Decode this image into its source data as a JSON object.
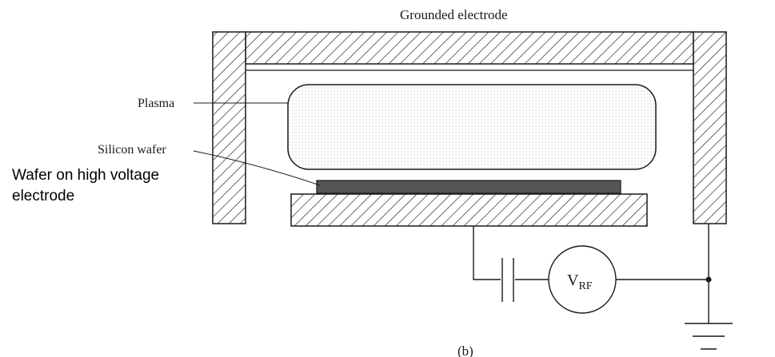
{
  "labels": {
    "grounded_electrode": "Grounded electrode",
    "plasma": "Plasma",
    "silicon_wafer": "Silicon wafer",
    "wafer_on_hv_line1": "Wafer on high voltage",
    "wafer_on_hv_line2": "electrode",
    "vrf_main": "V",
    "vrf_sub": "RF",
    "caption": "(b)"
  },
  "colors": {
    "ink": "#1a1a1a",
    "wafer_fill": "#555555",
    "plasma_dots": "#9a9a9a"
  }
}
